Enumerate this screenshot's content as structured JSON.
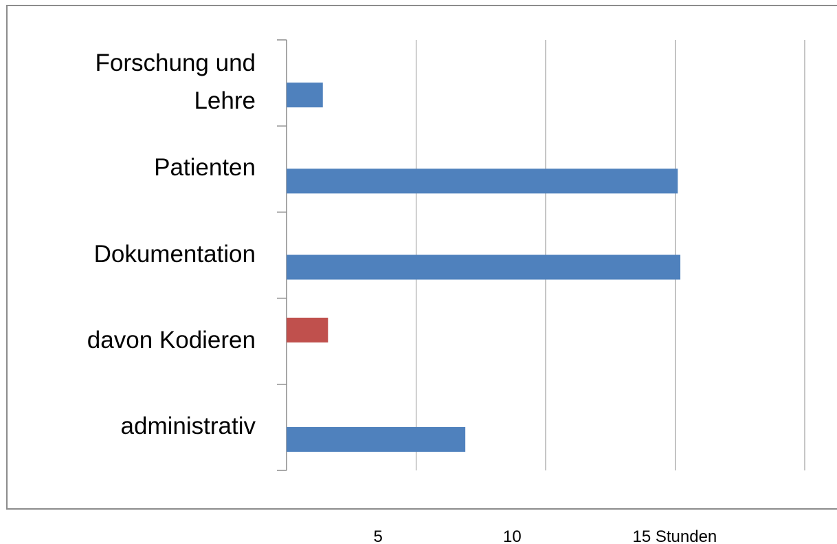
{
  "chart_data": {
    "type": "bar",
    "orientation": "horizontal",
    "categories": [
      "Forschung und Lehre",
      "Patienten",
      "Dokumentation",
      "davon Kodieren",
      "administrativ"
    ],
    "series": [
      {
        "color": "#4f81bd",
        "values": [
          1.4,
          15.1,
          15.2,
          null,
          6.9
        ]
      },
      {
        "color": "#c0504d",
        "values": [
          null,
          null,
          null,
          1.6,
          null
        ]
      }
    ],
    "xlim": [
      0,
      20
    ],
    "xticks": [
      5,
      10,
      {
        "value": 15,
        "label": "15 Stunden"
      }
    ],
    "grid": true
  }
}
